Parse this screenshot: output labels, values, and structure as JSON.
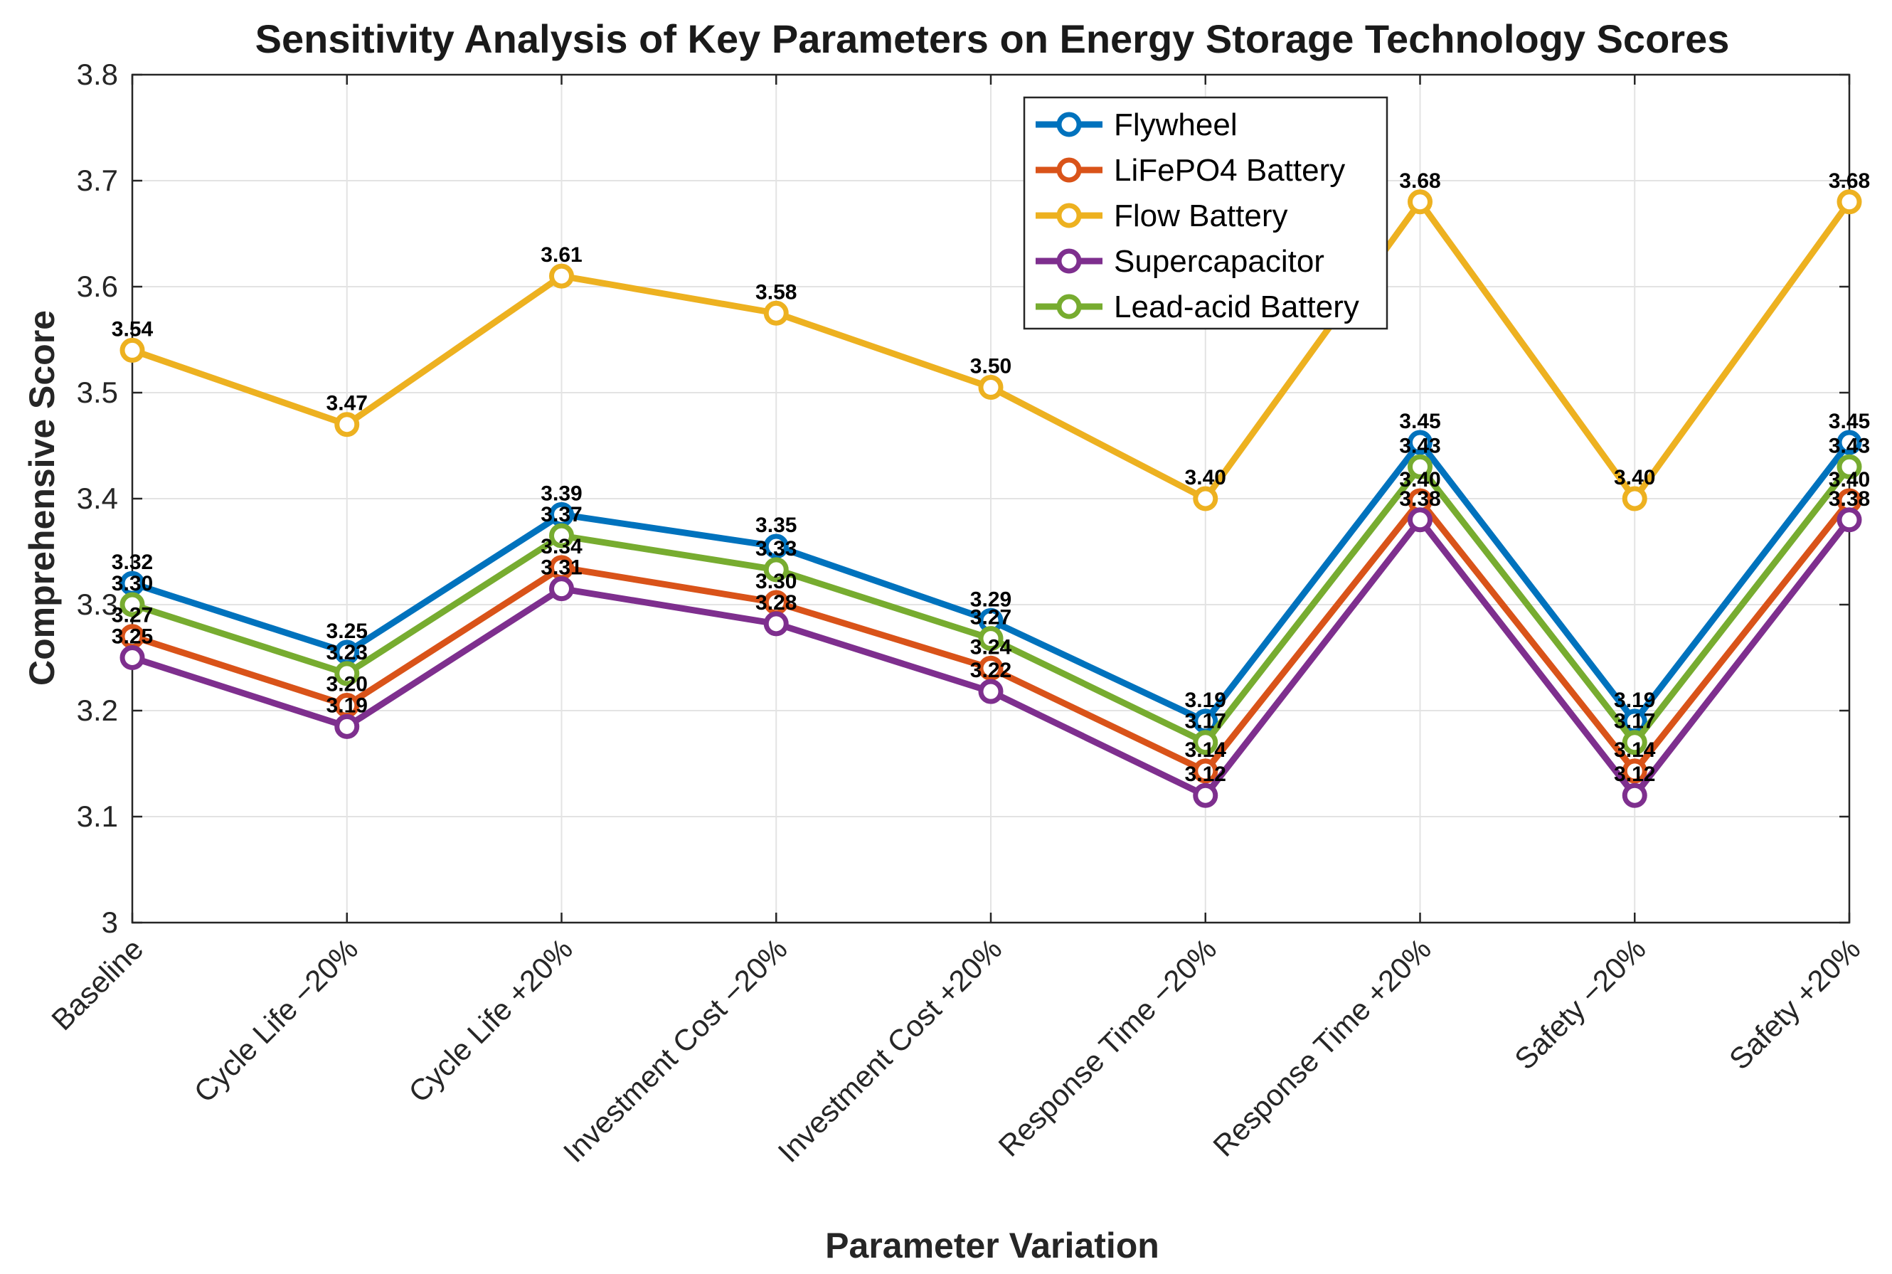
{
  "chart_data": {
    "type": "line",
    "title": "Sensitivity Analysis of Key Parameters on Energy Storage Technology Scores",
    "xlabel": "Parameter Variation",
    "ylabel": "Comprehensive Score",
    "ylim": [
      3.0,
      3.8
    ],
    "yticks": [
      3.0,
      3.1,
      3.2,
      3.3,
      3.4,
      3.5,
      3.6,
      3.7,
      3.8
    ],
    "ytick_labels": [
      "3",
      "3.1",
      "3.2",
      "3.3",
      "3.4",
      "3.5",
      "3.6",
      "3.7",
      "3.8"
    ],
    "grid": true,
    "legend_position": "top-right",
    "categories": [
      "Baseline",
      "Cycle Life −20%",
      "Cycle Life +20%",
      "Investment Cost −20%",
      "Investment Cost +20%",
      "Response Time −20%",
      "Response Time +20%",
      "Safety −20%",
      "Safety +20%"
    ],
    "series": [
      {
        "name": "Flywheel",
        "color": "#0072BD",
        "values": [
          3.32,
          3.255,
          3.385,
          3.355,
          3.285,
          3.19,
          3.453,
          3.19,
          3.453
        ],
        "labels": [
          "3.32",
          "3.25",
          "3.39",
          "3.35",
          "3.29",
          "3.19",
          "3.45",
          "3.19",
          "3.45"
        ]
      },
      {
        "name": "LiFePO4 Battery",
        "color": "#D95319",
        "values": [
          3.27,
          3.205,
          3.335,
          3.302,
          3.24,
          3.143,
          3.398,
          3.143,
          3.398
        ],
        "labels": [
          "3.27",
          "3.20",
          "3.34",
          "3.30",
          "3.24",
          "3.14",
          "3.40",
          "3.14",
          "3.40"
        ]
      },
      {
        "name": "Flow Battery",
        "color": "#EDB120",
        "values": [
          3.54,
          3.47,
          3.61,
          3.575,
          3.505,
          3.4,
          3.68,
          3.4,
          3.68
        ],
        "labels": [
          "3.54",
          "3.47",
          "3.61",
          "3.58",
          "3.50",
          "3.40",
          "3.68",
          "3.40",
          "3.68"
        ]
      },
      {
        "name": "Supercapacitor",
        "color": "#7E2F8E",
        "values": [
          3.25,
          3.185,
          3.315,
          3.282,
          3.218,
          3.12,
          3.38,
          3.12,
          3.38
        ],
        "labels": [
          "3.25",
          "3.19",
          "3.31",
          "3.28",
          "3.22",
          "3.12",
          "3.38",
          "3.12",
          "3.38"
        ]
      },
      {
        "name": "Lead-acid Battery",
        "color": "#77AC30",
        "values": [
          3.3,
          3.235,
          3.365,
          3.333,
          3.268,
          3.17,
          3.43,
          3.17,
          3.43
        ],
        "labels": [
          "3.30",
          "3.23",
          "3.37",
          "3.33",
          "3.27",
          "3.17",
          "3.43",
          "3.17",
          "3.43"
        ]
      }
    ]
  }
}
